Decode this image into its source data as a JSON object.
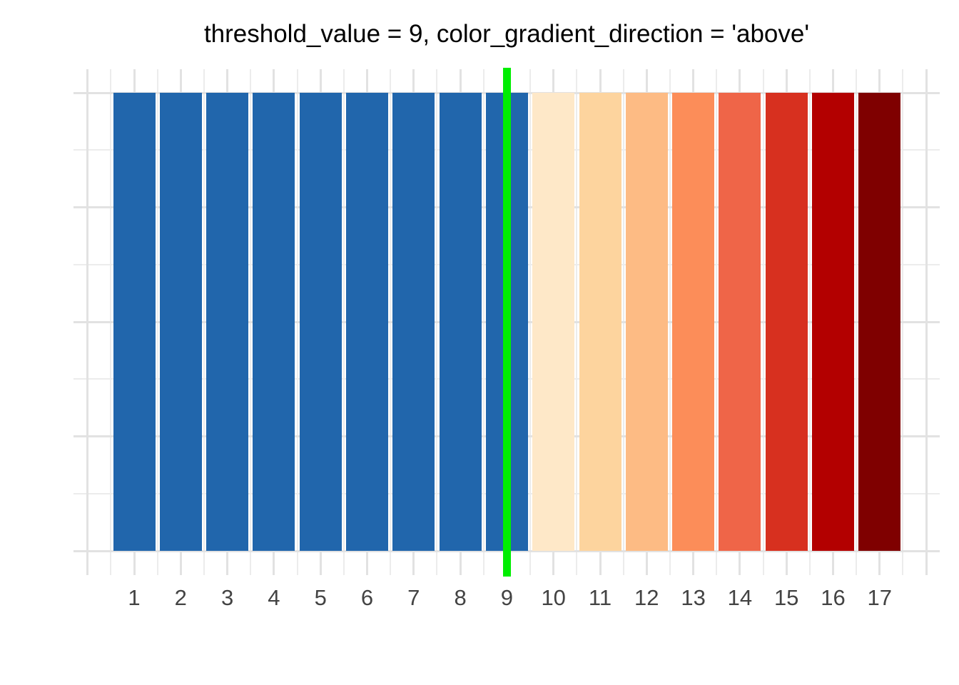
{
  "chart_data": {
    "type": "bar",
    "title": "threshold_value = 9, color_gradient_direction = 'above'",
    "categories": [
      "1",
      "2",
      "3",
      "4",
      "5",
      "6",
      "7",
      "8",
      "9",
      "10",
      "11",
      "12",
      "13",
      "14",
      "15",
      "16",
      "17"
    ],
    "values": [
      1,
      1,
      1,
      1,
      1,
      1,
      1,
      1,
      1,
      1,
      1,
      1,
      1,
      1,
      1,
      1,
      1
    ],
    "bar_colors": [
      "#2166ac",
      "#2166ac",
      "#2166ac",
      "#2166ac",
      "#2166ac",
      "#2166ac",
      "#2166ac",
      "#2166ac",
      "#2166ac",
      "#fee8c8",
      "#fdd49e",
      "#fdbb84",
      "#fc8d59",
      "#ef6548",
      "#d7301f",
      "#b30000",
      "#7f0000"
    ],
    "below_threshold_color": "#2166ac",
    "gradient_colors_above": [
      "#fee8c8",
      "#fdd49e",
      "#fdbb84",
      "#fc8d59",
      "#ef6548",
      "#d7301f",
      "#b30000",
      "#7f0000"
    ],
    "threshold": {
      "value": 9,
      "direction": "above",
      "line_color": "#00ee00"
    },
    "xlabel": "",
    "ylabel": "",
    "xlim": [
      -0.3,
      18.3
    ],
    "ylim": [
      -0.05,
      1.05
    ],
    "x_major_gridlines": [
      0,
      1,
      2,
      3,
      4,
      5,
      6,
      7,
      8,
      9,
      10,
      11,
      12,
      13,
      14,
      15,
      16,
      17,
      18
    ],
    "x_minor_gridlines": [
      0.5,
      1.5,
      2.5,
      3.5,
      4.5,
      5.5,
      6.5,
      7.5,
      8.5,
      9.5,
      10.5,
      11.5,
      12.5,
      13.5,
      14.5,
      15.5,
      16.5,
      17.5
    ],
    "y_major_gridlines": [
      0,
      0.25,
      0.5,
      0.75,
      1
    ],
    "y_minor_gridlines": [
      0.125,
      0.375,
      0.625,
      0.875
    ],
    "legend": "none",
    "grid": {
      "major_color": "#e2e2e2",
      "minor_color": "#ececec"
    },
    "text_colors": {
      "title": "#000000",
      "axis": "#434343"
    },
    "background": "#ffffff"
  }
}
